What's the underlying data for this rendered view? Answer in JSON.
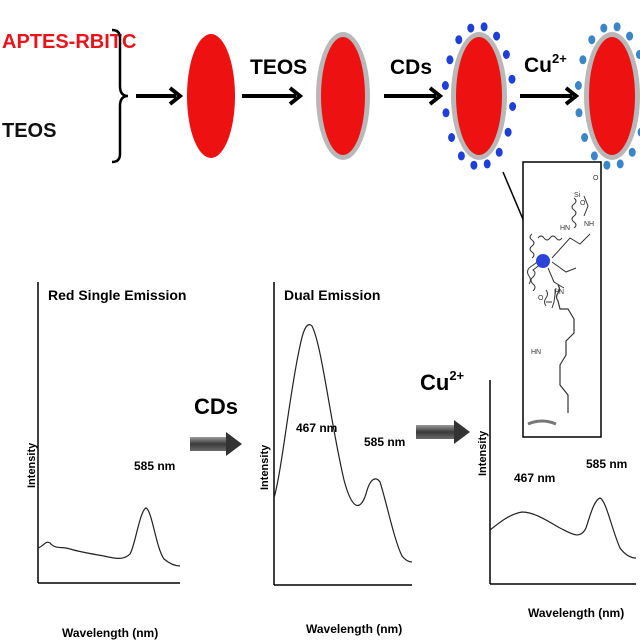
{
  "precursors": {
    "first": "APTES-RBITC",
    "second": "TEOS"
  },
  "steps": [
    {
      "reagent": "TEOS"
    },
    {
      "reagent": "CDs"
    },
    {
      "reagent": "Cu",
      "superscript": "2+"
    }
  ],
  "panels": [
    {
      "title": "Red Single Emission",
      "ylabel": "Intensity",
      "xlabel": "Wavelength (nm)",
      "peaks": [
        "585 nm"
      ]
    },
    {
      "title": "Dual Emission",
      "ylabel": "Intensity",
      "xlabel": "Wavelength (nm)",
      "peaks": [
        "467 nm",
        "585 nm"
      ]
    },
    {
      "title": "",
      "ylabel": "Intensity",
      "xlabel": "Wavelength (nm)",
      "peaks": [
        "467 nm",
        "585 nm"
      ]
    }
  ],
  "transitions": [
    {
      "label": "CDs"
    },
    {
      "label": "Cu",
      "superscript": "2+"
    }
  ],
  "inset": {
    "labels": [
      "HN",
      "NH",
      "HN",
      "NH",
      "HN",
      "O",
      "O",
      "O",
      "Si"
    ]
  },
  "colors": {
    "accent_text": "#e8141c",
    "particle": "#ee1111",
    "silica_shell": "#b8b8b8",
    "carbon_dot": "#1e3fd8",
    "copper_dot": "#3a86c8"
  },
  "icons": [
    "bracket-icon",
    "arrow-right-icon",
    "block-arrow-icon"
  ]
}
